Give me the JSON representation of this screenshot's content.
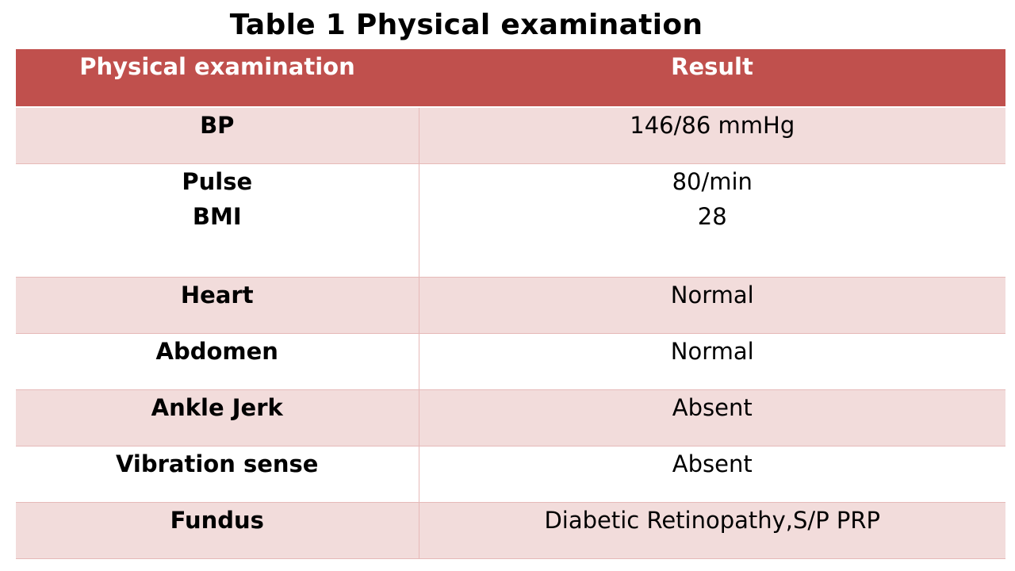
{
  "title": "Table 1 Physical examination",
  "header": {
    "col1": "Physical examination",
    "col2": "Result"
  },
  "rows": [
    {
      "label": "BP",
      "value": "146/86 mmHg"
    },
    {
      "label": "Pulse",
      "value": "80/min",
      "label2": "BMI",
      "value2": "28"
    },
    {
      "label": "Heart",
      "value": "Normal"
    },
    {
      "label": "Abdomen",
      "value": "Normal"
    },
    {
      "label": "Ankle Jerk",
      "value": "Absent"
    },
    {
      "label": "Vibration sense",
      "value": "Absent"
    },
    {
      "label": "Fundus",
      "value": "Diabetic Retinopathy,S/P PRP"
    }
  ],
  "colors": {
    "header_bg": "#c0504d",
    "row_shade": "#f2dcdb",
    "row_plain": "#ffffff",
    "border": "#e6b9b8"
  }
}
